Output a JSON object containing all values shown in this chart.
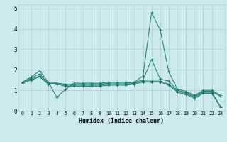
{
  "title": "",
  "xlabel": "Humidex (Indice chaleur)",
  "xlim": [
    -0.5,
    23.5
  ],
  "ylim": [
    0,
    5.2
  ],
  "xticks": [
    0,
    1,
    2,
    3,
    4,
    5,
    6,
    7,
    8,
    9,
    10,
    11,
    12,
    13,
    14,
    15,
    16,
    17,
    18,
    19,
    20,
    21,
    22,
    23
  ],
  "yticks": [
    0,
    1,
    2,
    3,
    4,
    5
  ],
  "bg_color": "#cdeaea",
  "grid_color": "#aacfcf",
  "line_color": "#1a7a6e",
  "series": [
    {
      "x": [
        0,
        1,
        2,
        3,
        4,
        5,
        6,
        7,
        8,
        9,
        10,
        11,
        12,
        13,
        14,
        15,
        16,
        17,
        18,
        19,
        20,
        21,
        22,
        23
      ],
      "y": [
        1.4,
        1.65,
        1.95,
        1.4,
        0.65,
        1.05,
        1.35,
        1.35,
        1.35,
        1.35,
        1.4,
        1.4,
        1.4,
        1.4,
        1.7,
        4.8,
        3.95,
        1.9,
        1.05,
        0.95,
        0.75,
        1.0,
        1.0,
        0.75
      ]
    },
    {
      "x": [
        0,
        1,
        2,
        3,
        4,
        5,
        6,
        7,
        8,
        9,
        10,
        11,
        12,
        13,
        14,
        15,
        16,
        17,
        18,
        19,
        20,
        21,
        22,
        23
      ],
      "y": [
        1.4,
        1.6,
        1.8,
        1.35,
        1.35,
        1.3,
        1.3,
        1.3,
        1.3,
        1.3,
        1.35,
        1.35,
        1.35,
        1.4,
        1.5,
        2.5,
        1.55,
        1.45,
        1.0,
        0.9,
        0.7,
        0.95,
        0.95,
        0.7
      ]
    },
    {
      "x": [
        0,
        1,
        2,
        3,
        4,
        5,
        6,
        7,
        8,
        9,
        10,
        11,
        12,
        13,
        14,
        15,
        16,
        17,
        18,
        19,
        20,
        21,
        22,
        23
      ],
      "y": [
        1.4,
        1.55,
        1.7,
        1.35,
        1.35,
        1.25,
        1.25,
        1.25,
        1.25,
        1.25,
        1.3,
        1.3,
        1.3,
        1.35,
        1.45,
        1.45,
        1.45,
        1.3,
        0.95,
        0.85,
        0.65,
        0.9,
        0.9,
        0.22
      ]
    },
    {
      "x": [
        0,
        1,
        2,
        3,
        4,
        5,
        6,
        7,
        8,
        9,
        10,
        11,
        12,
        13,
        14,
        15,
        16,
        17,
        18,
        19,
        20,
        21,
        22,
        23
      ],
      "y": [
        1.35,
        1.5,
        1.65,
        1.3,
        1.3,
        1.2,
        1.2,
        1.2,
        1.2,
        1.2,
        1.25,
        1.25,
        1.25,
        1.3,
        1.4,
        1.4,
        1.4,
        1.25,
        0.9,
        0.8,
        0.6,
        0.85,
        0.85,
        0.18
      ]
    }
  ]
}
